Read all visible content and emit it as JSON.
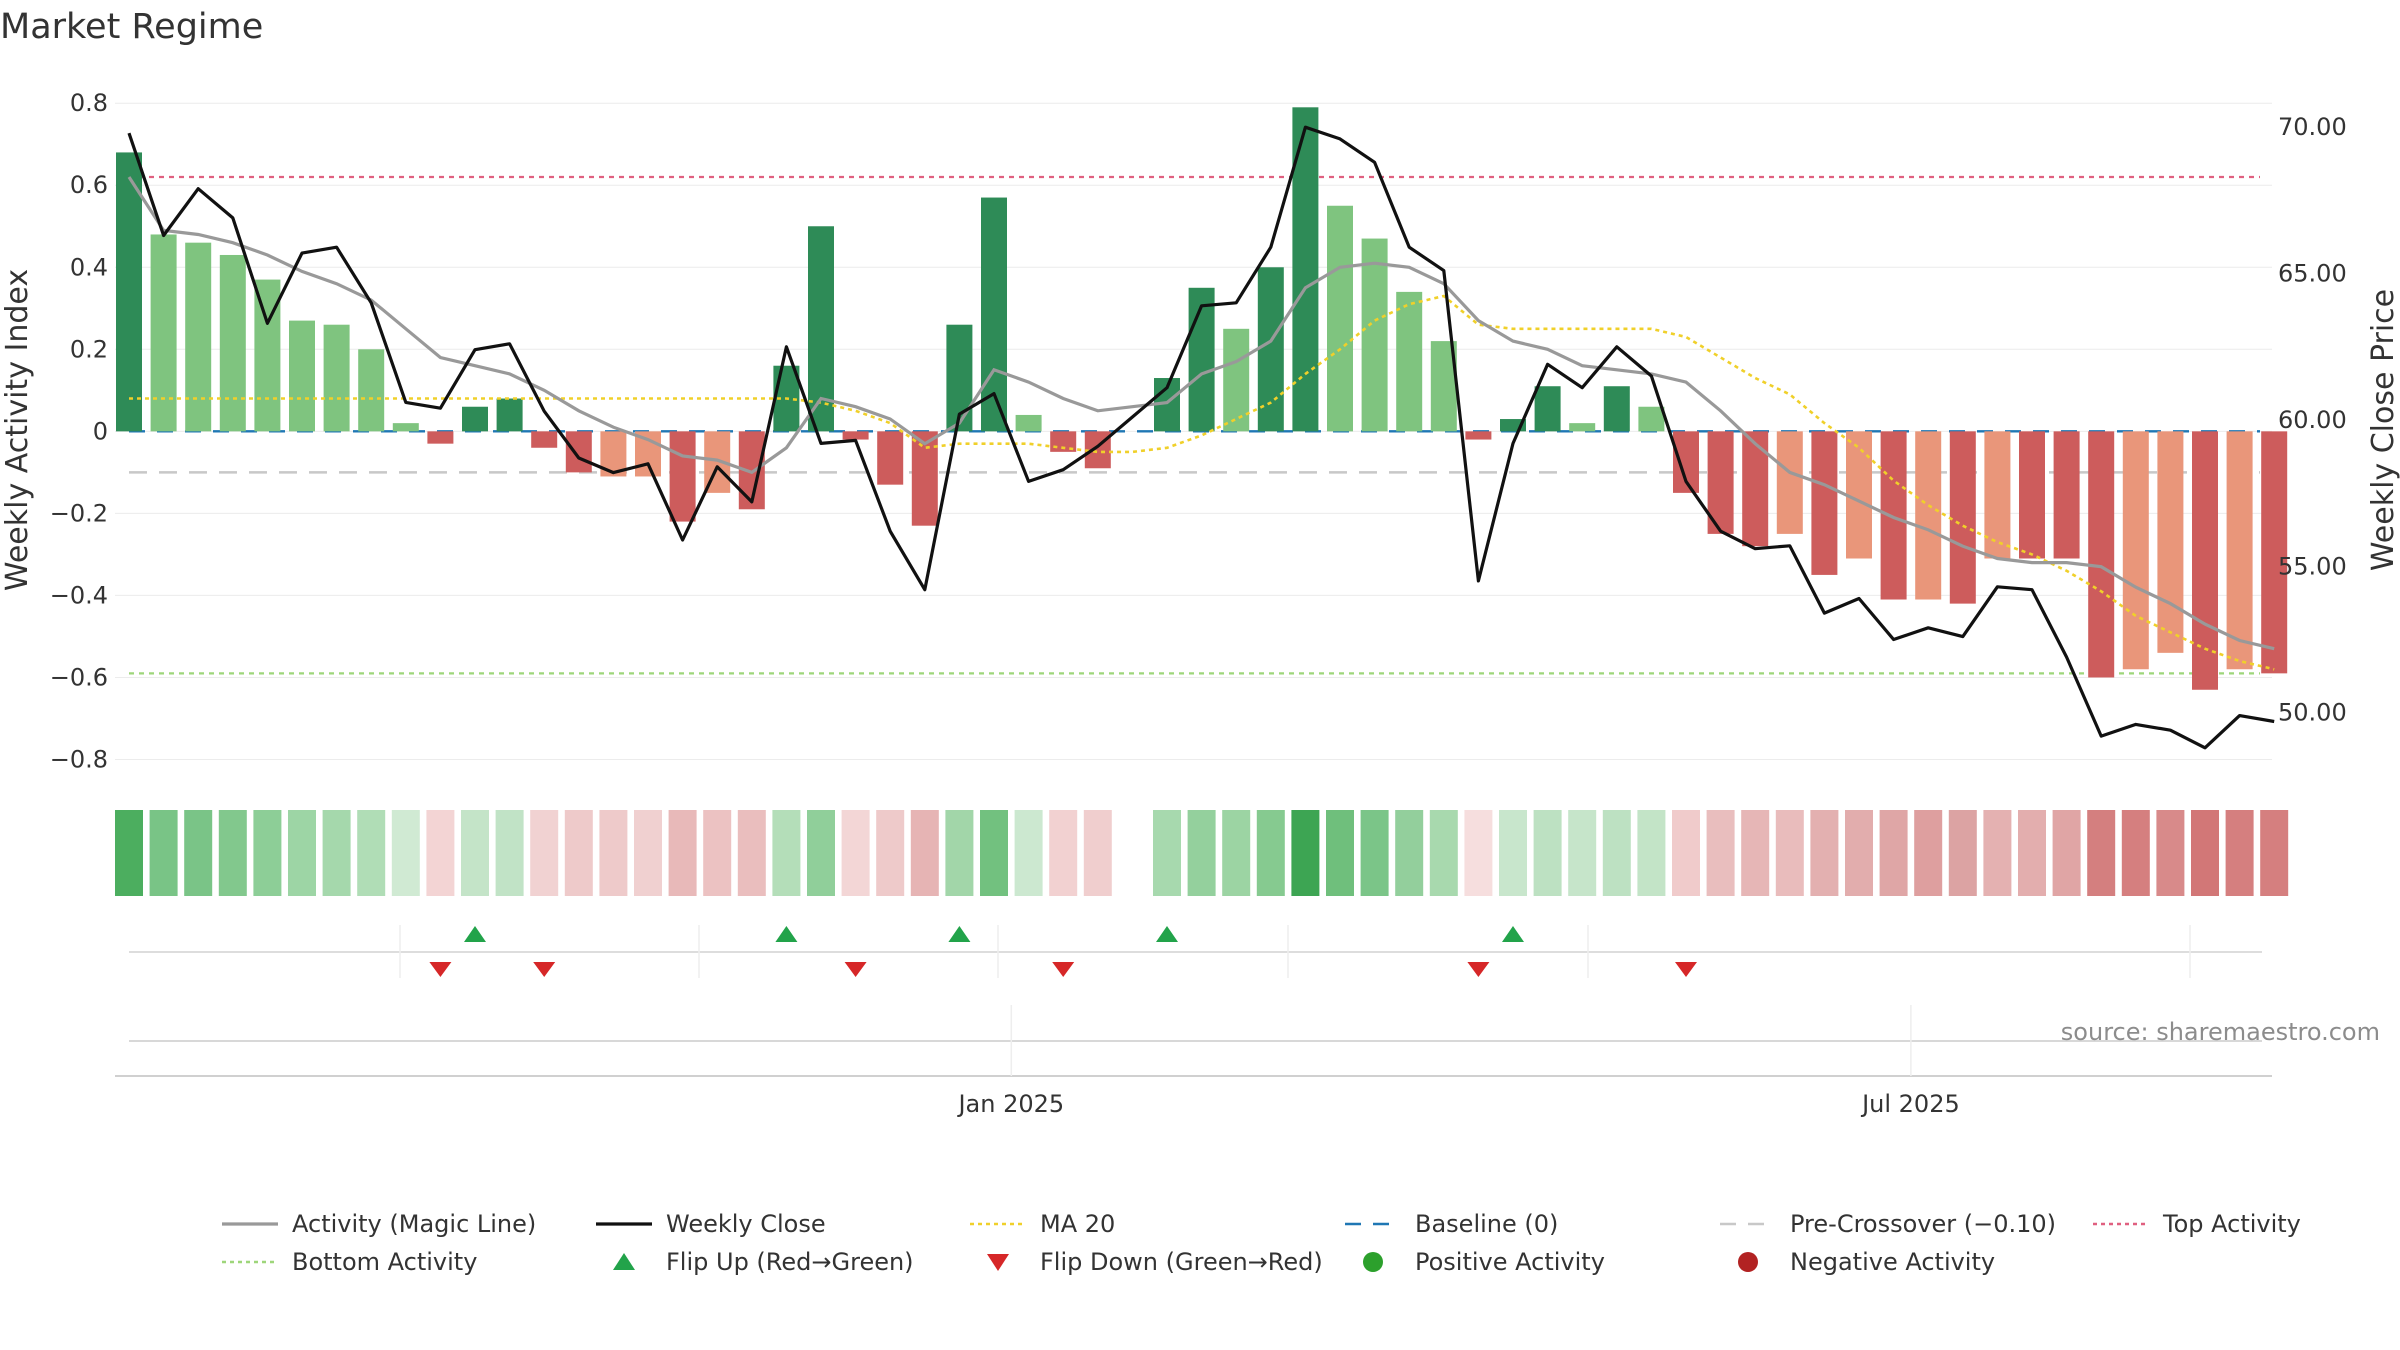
{
  "title": "Market Regime",
  "source": "source: sharemaestro.com",
  "colors": {
    "green_dark": "#2e8b57",
    "green_light": "#7fc47f",
    "red_dark": "#cd5c5c",
    "red_light": "#e9967a",
    "magic_line": "#999999",
    "close_line": "#111111",
    "ma20": "#f0d02a",
    "baseline": "#1f77b4",
    "pre_crossover": "#c8c8c8",
    "top_activity": "#e06080",
    "bottom_activity": "#9ed67a",
    "flip_up": "#22a34a",
    "flip_down": "#d62728",
    "positive_activity": "#2ca02c",
    "negative_activity": "#b22222"
  },
  "chart_data": {
    "type": "bar",
    "title": "Market Regime",
    "ylabel_left": "Weekly Activity Index",
    "ylabel_right": "Weekly Close Price",
    "ylim_left": [
      -0.85,
      0.82
    ],
    "ylim_right": [
      47.7,
      71.1
    ],
    "yticks_left": [
      {
        "v": 0.8,
        "label": "0.8"
      },
      {
        "v": 0.6,
        "label": "0.6"
      },
      {
        "v": 0.4,
        "label": "0.4"
      },
      {
        "v": 0.2,
        "label": "0.2"
      },
      {
        "v": 0,
        "label": "0"
      },
      {
        "v": -0.2,
        "label": "−0.2"
      },
      {
        "v": -0.4,
        "label": "−0.4"
      },
      {
        "v": -0.6,
        "label": "−0.6"
      },
      {
        "v": -0.8,
        "label": "−0.8"
      }
    ],
    "yticks_right": [
      {
        "v": 70,
        "label": "70.00"
      },
      {
        "v": 65,
        "label": "65.00"
      },
      {
        "v": 60,
        "label": "60.00"
      },
      {
        "v": 55,
        "label": "55.00"
      },
      {
        "v": 50,
        "label": "50.00"
      }
    ],
    "xticks": [
      {
        "week": 25.5,
        "label": "Jan 2025"
      },
      {
        "week": 51.5,
        "label": "Jul 2025"
      }
    ],
    "reference_lines": {
      "baseline": 0,
      "pre_crossover": -0.1,
      "top_activity": 0.62,
      "bottom_activity": -0.59
    },
    "activity": [
      0.68,
      0.48,
      0.46,
      0.43,
      0.37,
      0.27,
      0.26,
      0.2,
      0.02,
      -0.03,
      0.06,
      0.08,
      -0.04,
      -0.1,
      -0.11,
      -0.11,
      -0.22,
      -0.15,
      -0.19,
      0.16,
      0.5,
      -0.02,
      -0.13,
      -0.23,
      0.26,
      0.57,
      0.04,
      -0.05,
      -0.09,
      null,
      0.13,
      0.35,
      0.25,
      0.4,
      0.79,
      0.55,
      0.47,
      0.34,
      0.22,
      -0.02,
      0.03,
      0.11,
      0.02,
      0.11,
      0.06,
      -0.15,
      -0.25,
      -0.28,
      -0.25,
      -0.35,
      -0.31,
      -0.41,
      -0.41,
      -0.42,
      -0.31,
      -0.31,
      -0.31,
      -0.6,
      -0.58,
      -0.54,
      -0.63,
      -0.58,
      -0.59
    ],
    "activity_light": [
      false,
      true,
      true,
      true,
      true,
      true,
      true,
      true,
      true,
      false,
      false,
      false,
      false,
      false,
      true,
      true,
      false,
      true,
      false,
      false,
      false,
      false,
      false,
      false,
      false,
      false,
      true,
      false,
      false,
      false,
      false,
      false,
      true,
      false,
      false,
      true,
      true,
      true,
      true,
      false,
      false,
      false,
      true,
      false,
      true,
      false,
      false,
      false,
      true,
      false,
      true,
      false,
      true,
      false,
      true,
      false,
      false,
      false,
      true,
      true,
      false,
      true,
      false
    ],
    "magic_line": [
      0.62,
      0.49,
      0.48,
      0.46,
      0.43,
      0.39,
      0.36,
      0.32,
      0.25,
      0.18,
      0.16,
      0.14,
      0.1,
      0.05,
      0.01,
      -0.02,
      -0.06,
      -0.07,
      -0.1,
      -0.04,
      0.08,
      0.06,
      0.03,
      -0.03,
      0.02,
      0.15,
      0.12,
      0.08,
      0.05,
      0.06,
      0.07,
      0.14,
      0.17,
      0.22,
      0.35,
      0.4,
      0.41,
      0.4,
      0.36,
      0.27,
      0.22,
      0.2,
      0.16,
      0.15,
      0.14,
      0.12,
      0.05,
      -0.03,
      -0.1,
      -0.13,
      -0.17,
      -0.21,
      -0.24,
      -0.28,
      -0.31,
      -0.32,
      -0.32,
      -0.33,
      -0.38,
      -0.42,
      -0.47,
      -0.51,
      -0.53
    ],
    "weekly_close": [
      69.8,
      66.3,
      67.9,
      66.9,
      63.3,
      65.7,
      65.9,
      64.0,
      60.6,
      60.4,
      62.4,
      62.6,
      60.3,
      58.7,
      58.2,
      58.5,
      55.9,
      58.4,
      57.2,
      62.5,
      59.2,
      59.3,
      56.2,
      54.2,
      60.2,
      60.9,
      57.9,
      58.3,
      59.1,
      60.1,
      61.1,
      63.9,
      64.0,
      65.9,
      70.0,
      69.6,
      68.8,
      65.9,
      65.1,
      54.5,
      59.2,
      61.9,
      61.1,
      62.5,
      61.5,
      57.9,
      56.2,
      55.6,
      55.7,
      53.4,
      53.9,
      52.5,
      52.9,
      52.6,
      54.3,
      54.2,
      51.9,
      49.2,
      49.6,
      49.4,
      48.8,
      49.9,
      49.7
    ],
    "ma20": [
      0.08,
      0.08,
      0.08,
      0.08,
      0.08,
      0.08,
      0.08,
      0.08,
      0.08,
      0.08,
      0.08,
      0.08,
      0.08,
      0.08,
      0.08,
      0.08,
      0.08,
      0.08,
      0.08,
      0.08,
      0.07,
      0.05,
      0.02,
      -0.04,
      -0.03,
      -0.03,
      -0.03,
      -0.04,
      -0.05,
      -0.05,
      -0.04,
      -0.01,
      0.03,
      0.07,
      0.14,
      0.2,
      0.27,
      0.31,
      0.33,
      0.26,
      0.25,
      0.25,
      0.25,
      0.25,
      0.25,
      0.23,
      0.18,
      0.13,
      0.09,
      0.02,
      -0.04,
      -0.12,
      -0.18,
      -0.23,
      -0.27,
      -0.3,
      -0.34,
      -0.39,
      -0.45,
      -0.49,
      -0.53,
      -0.56,
      -0.58
    ],
    "regime_strip": [
      "#4cae5f",
      "#79c486",
      "#7ac487",
      "#82c88d",
      "#8dce97",
      "#9dd5a5",
      "#a5d8ac",
      "#b0ddb6",
      "#d0ead3",
      "#f3d4d4",
      "#c4e4c8",
      "#c1e3c6",
      "#f1d2d2",
      "#eecaca",
      "#eecaca",
      "#f0d0d0",
      "#e8b9b9",
      "#ecc2c2",
      "#eabebe",
      "#b4deb9",
      "#90cf9a",
      "#f3d6d6",
      "#eecaca",
      "#e6b4b4",
      "#a2d6a9",
      "#72c17f",
      "#cce8d0",
      "#f2d1d1",
      "#f0cece",
      "#ffffff",
      "#a7d9ae",
      "#94d09d",
      "#9cd4a3",
      "#86ca90",
      "#3da553",
      "#6fbf7c",
      "#7bc588",
      "#93cf9c",
      "#a8d9ae",
      "#f6dede",
      "#c8e6cc",
      "#bde1c2",
      "#c6e5ca",
      "#bde1c2",
      "#c3e4c7",
      "#f0cbcb",
      "#e9bebe",
      "#e6b6b6",
      "#e9bcbc",
      "#e3b0b0",
      "#e2adad",
      "#dfa6a6",
      "#de9f9f",
      "#dca3a3",
      "#e4b1b1",
      "#e3aeae",
      "#e0a5a5",
      "#d47f7f",
      "#d57f7f",
      "#d88a8a",
      "#d27777",
      "#d57f7f",
      "#d57f7f"
    ],
    "flip_up_weeks": [
      10,
      19,
      24,
      30,
      40
    ],
    "flip_down_weeks": [
      9,
      12,
      21,
      27,
      39,
      45
    ]
  },
  "legend": [
    {
      "label": "Activity (Magic Line)",
      "kind": "line-solid",
      "color": "#999999"
    },
    {
      "label": "Weekly Close",
      "kind": "line-solid",
      "color": "#111111"
    },
    {
      "label": "MA 20",
      "kind": "line-dotted",
      "color": "#f0d02a"
    },
    {
      "label": "Baseline (0)",
      "kind": "line-dashed",
      "color": "#1f77b4"
    },
    {
      "label": "Pre-Crossover (−0.10)",
      "kind": "line-dashed",
      "color": "#c8c8c8"
    },
    {
      "label": "Top Activity",
      "kind": "line-dotted",
      "color": "#e06080"
    },
    {
      "label": "Bottom Activity",
      "kind": "line-dotted",
      "color": "#9ed67a"
    },
    {
      "label": "Flip Up (Red→Green)",
      "kind": "tri-up",
      "color": "#22a34a"
    },
    {
      "label": "Flip Down (Green→Red)",
      "kind": "tri-down",
      "color": "#d62728"
    },
    {
      "label": "Positive Activity",
      "kind": "dot",
      "color": "#2ca02c"
    },
    {
      "label": "Negative Activity",
      "kind": "dot",
      "color": "#b22222"
    }
  ]
}
